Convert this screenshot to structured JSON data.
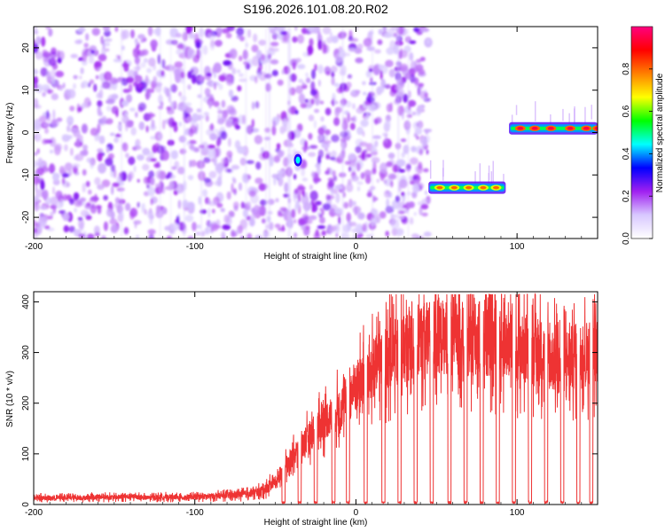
{
  "title": "S196.2026.101.08.20.R02",
  "chart_data": [
    {
      "type": "heatmap",
      "xlabel": "Height of straight line (km)",
      "ylabel": "Frequency (Hz)",
      "xlim": [
        -200,
        150
      ],
      "ylim": [
        -25,
        25
      ],
      "xticks": [
        -200,
        -100,
        0,
        100
      ],
      "yticks": [
        -20,
        -10,
        0,
        10,
        20
      ],
      "colorbar": {
        "label": "Normalized spectral amplitude",
        "range": [
          0,
          1
        ],
        "ticks": [
          "0.0",
          "0.2",
          "0.4",
          "0.6",
          "0.8"
        ],
        "colors": [
          "#ffffff",
          "#d8c8ff",
          "#a020f0",
          "#0000ff",
          "#00ffff",
          "#00ff00",
          "#ffff00",
          "#ff8000",
          "#ff0000",
          "#ff0080"
        ]
      },
      "noise_region_x": [
        -200,
        45
      ],
      "noise_level": 0.25,
      "features": [
        {
          "name": "isolated-spot",
          "x": -36,
          "y": -6.5,
          "amplitude": 0.35
        },
        {
          "name": "lower-band",
          "x_range": [
            45,
            93
          ],
          "freq": -13,
          "amplitude": 0.75,
          "peaks_x": [
            52,
            61,
            70,
            79,
            87
          ]
        },
        {
          "name": "upper-band",
          "x_range": [
            95,
            150
          ],
          "freq": 1,
          "amplitude": 0.9,
          "peaks_x": [
            102,
            111,
            121,
            133,
            143,
            150
          ]
        }
      ]
    },
    {
      "type": "line",
      "xlabel": "Height of straight line (km)",
      "ylabel": "SNR (10 * v/v)",
      "xlim": [
        -200,
        150
      ],
      "ylim": [
        0,
        420
      ],
      "xticks": [
        -200,
        -100,
        0,
        100
      ],
      "yticks": [
        0,
        100,
        200,
        300,
        400
      ],
      "series": [
        {
          "name": "SNR",
          "color": "#ee3333",
          "x": [
            -200,
            -190,
            -180,
            -170,
            -160,
            -150,
            -140,
            -130,
            -120,
            -110,
            -100,
            -90,
            -80,
            -70,
            -60,
            -50,
            -45,
            -40,
            -35,
            -30,
            -25,
            -20,
            -15,
            -10,
            -5,
            0,
            5,
            10,
            15,
            20,
            25,
            30,
            35,
            40,
            45,
            50,
            55,
            60,
            65,
            70,
            75,
            80,
            85,
            90,
            95,
            100,
            105,
            110,
            115,
            120,
            125,
            130,
            135,
            140,
            145,
            150
          ],
          "values": [
            15,
            12,
            14,
            13,
            15,
            14,
            16,
            13,
            15,
            14,
            15,
            16,
            18,
            20,
            25,
            45,
            70,
            90,
            110,
            130,
            150,
            165,
            175,
            190,
            210,
            230,
            250,
            265,
            280,
            290,
            300,
            310,
            318,
            325,
            330,
            335,
            330,
            335,
            330,
            320,
            330,
            325,
            320,
            315,
            320,
            310,
            305,
            300,
            300,
            290,
            280,
            285,
            290,
            295,
            300,
            305
          ],
          "dropouts_x": [
            -45,
            -35,
            -25,
            -14,
            -5,
            6,
            17,
            27,
            37,
            47,
            58,
            68,
            78,
            88,
            98,
            108,
            118,
            128,
            138,
            146
          ]
        }
      ]
    }
  ]
}
